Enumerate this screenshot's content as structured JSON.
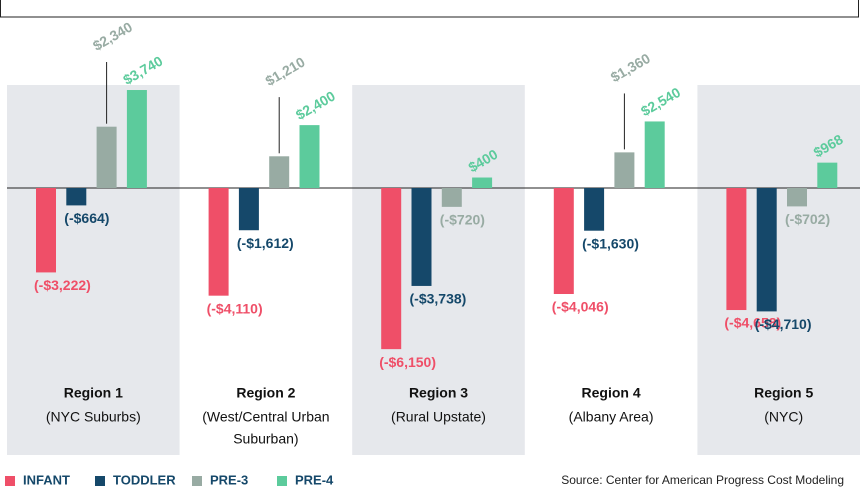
{
  "chart_data": {
    "type": "bar",
    "categories": [
      "Region 1",
      "Region 2",
      "Region 3",
      "Region 4",
      "Region 5"
    ],
    "subtitles": [
      [
        "(NYC Suburbs)"
      ],
      [
        "(West/Central Urban",
        "Suburban)"
      ],
      [
        "(Rural Upstate)"
      ],
      [
        "(Albany Area)"
      ],
      [
        "(NYC)"
      ]
    ],
    "series": [
      {
        "name": "INFANT",
        "color": "#ef4f68",
        "values": [
          -3222,
          -4110,
          -6150,
          -4046,
          -4658
        ],
        "value_labels": [
          "(-$3,222)",
          "(-$4,110)",
          "(-$6,150)",
          "(-$4,046)",
          "(-$4,658)"
        ]
      },
      {
        "name": "TODDLER",
        "color": "#15486a",
        "values": [
          -664,
          -1612,
          -3738,
          -1630,
          -4710
        ],
        "value_labels": [
          "(-$664)",
          "(-$1,612)",
          "(-$3,738)",
          "(-$1,630)",
          "(-$4,710)"
        ]
      },
      {
        "name": "PRE-3",
        "color": "#98aba3",
        "values": [
          2340,
          1210,
          -720,
          1360,
          -702
        ],
        "value_labels": [
          "$2,340",
          "$1,210",
          "(-$720)",
          "$1,360",
          "(-$702)"
        ]
      },
      {
        "name": "PRE-4",
        "color": "#5ccb9c",
        "values": [
          3740,
          2400,
          400,
          2540,
          968
        ],
        "value_labels": [
          "$3,740",
          "$2,400",
          "$400",
          "$2,540",
          "$968"
        ]
      }
    ],
    "source": "Source:  Center for American Progress Cost Modeling"
  }
}
